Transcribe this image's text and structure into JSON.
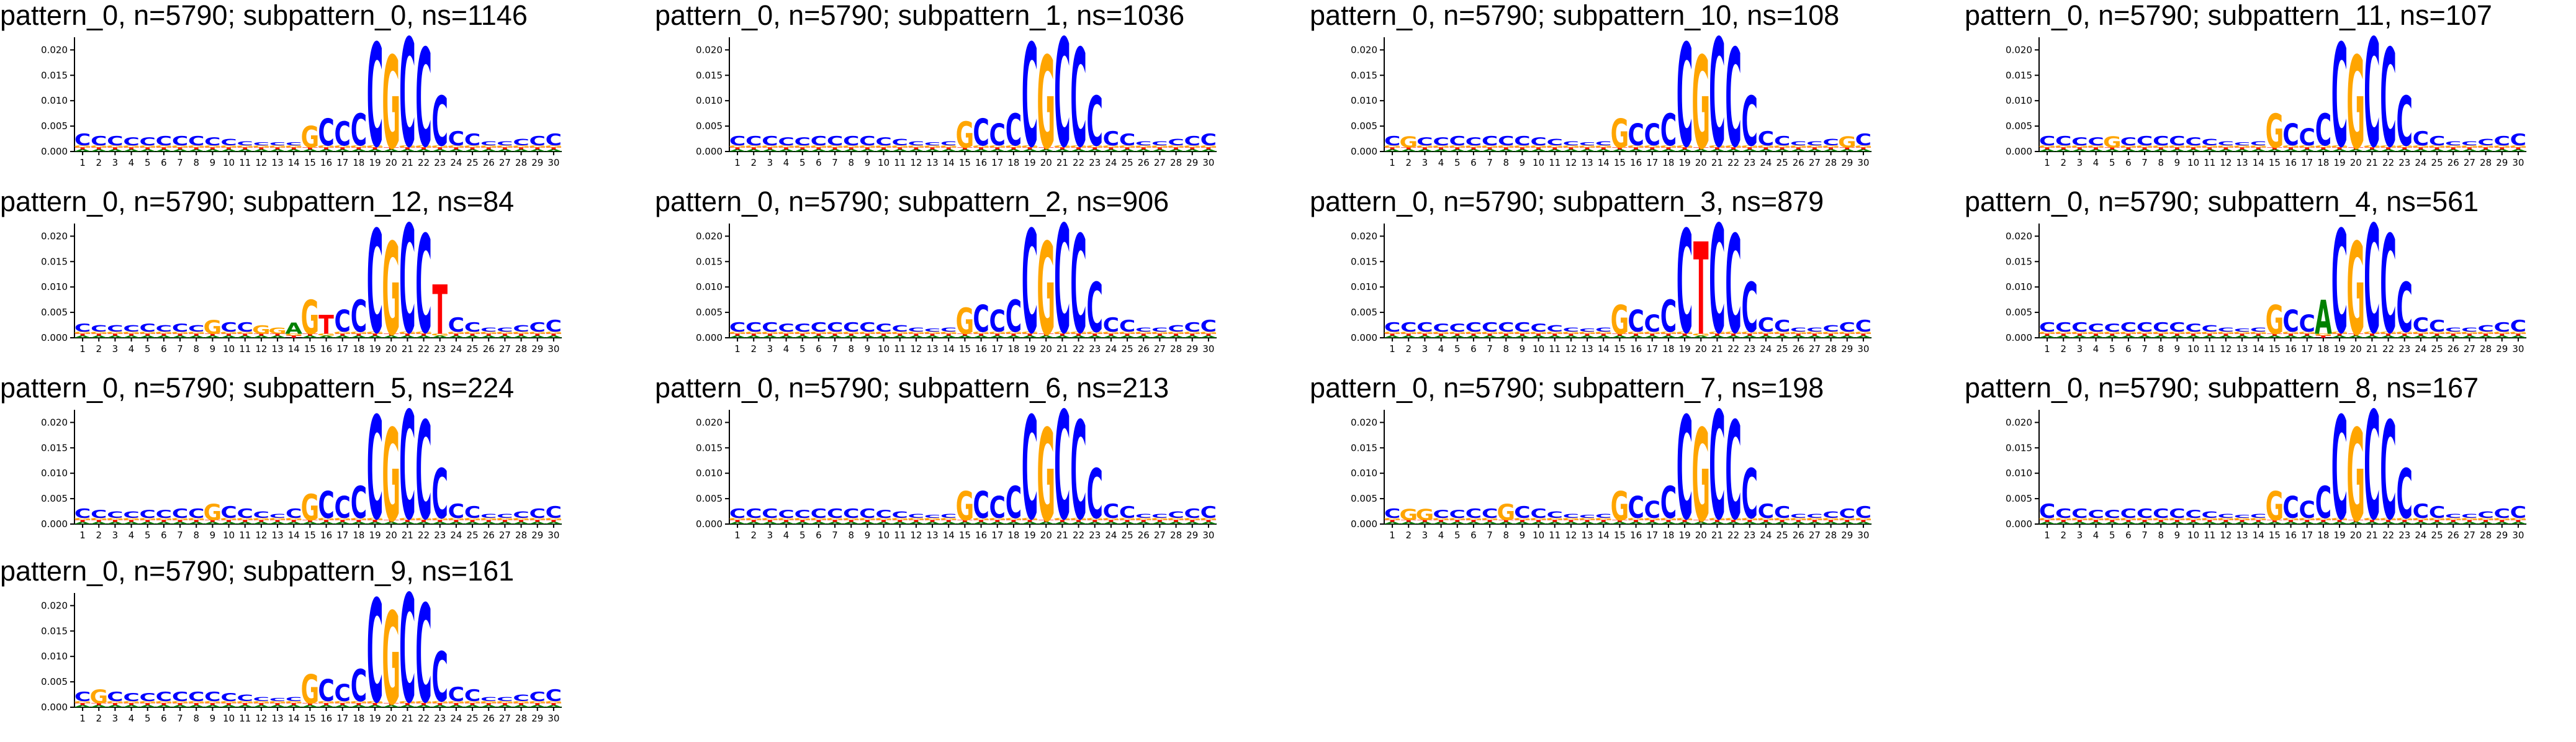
{
  "colors": {
    "A": "#008000",
    "C": "#0000ff",
    "G": "#ffa500",
    "T": "#ff0000",
    "axis": "#000000"
  },
  "chart_data": [
    {
      "type": "sequence-logo",
      "title": "pattern_0, n=5790; subpattern_0, ns=1146",
      "ylim": [
        0,
        0.022
      ],
      "yticks": [
        "0.000",
        "0.005",
        "0.010",
        "0.015",
        "0.020"
      ],
      "xticks": [
        1,
        2,
        3,
        4,
        5,
        6,
        7,
        8,
        9,
        10,
        11,
        12,
        13,
        14,
        15,
        16,
        17,
        18,
        19,
        20,
        21,
        22,
        23,
        24,
        25,
        26,
        27,
        28,
        29,
        30
      ],
      "sequence": "CCCCCCCCCCCCCCGCCCCGCCCCCCCCCC",
      "heights": [
        0.0035,
        0.003,
        0.003,
        0.0028,
        0.0028,
        0.003,
        0.003,
        0.003,
        0.0028,
        0.0025,
        0.002,
        0.0015,
        0.001,
        0.0015,
        0.005,
        0.0065,
        0.006,
        0.0075,
        0.0215,
        0.019,
        0.0225,
        0.0205,
        0.011,
        0.004,
        0.0035,
        0.002,
        0.002,
        0.0025,
        0.003,
        0.0035
      ]
    },
    {
      "type": "sequence-logo",
      "title": "pattern_0, n=5790; subpattern_1, ns=1036",
      "ylim": [
        0,
        0.022
      ],
      "yticks": [
        "0.000",
        "0.005",
        "0.010",
        "0.015",
        "0.020"
      ],
      "xticks": [
        1,
        2,
        3,
        4,
        5,
        6,
        7,
        8,
        9,
        10,
        11,
        12,
        13,
        14,
        15,
        16,
        17,
        18,
        19,
        20,
        21,
        22,
        23,
        24,
        25,
        26,
        27,
        28,
        29,
        30
      ],
      "sequence": "CCCCCCCCCCCCCCGCCCCGCCCCCCCCCC",
      "heights": [
        0.003,
        0.003,
        0.003,
        0.0028,
        0.0028,
        0.003,
        0.003,
        0.003,
        0.003,
        0.0028,
        0.0025,
        0.002,
        0.0015,
        0.002,
        0.006,
        0.0065,
        0.0055,
        0.0075,
        0.0215,
        0.019,
        0.0225,
        0.0205,
        0.011,
        0.004,
        0.0035,
        0.002,
        0.002,
        0.0025,
        0.003,
        0.0035
      ]
    },
    {
      "type": "sequence-logo",
      "title": "pattern_0, n=5790; subpattern_10, ns=108",
      "ylim": [
        0,
        0.022
      ],
      "yticks": [
        "0.000",
        "0.005",
        "0.010",
        "0.015",
        "0.020"
      ],
      "xticks": [
        1,
        2,
        3,
        4,
        5,
        6,
        7,
        8,
        9,
        10,
        11,
        12,
        13,
        14,
        15,
        16,
        17,
        18,
        19,
        20,
        21,
        22,
        23,
        24,
        25,
        26,
        27,
        28,
        29,
        30
      ],
      "sequence": "CGCCCCCCCCCCCCGCCCCGCCCCCCCCGC",
      "heights": [
        0.003,
        0.003,
        0.0028,
        0.0028,
        0.003,
        0.0028,
        0.003,
        0.003,
        0.003,
        0.0028,
        0.0025,
        0.002,
        0.0015,
        0.002,
        0.0065,
        0.0055,
        0.0055,
        0.0075,
        0.0215,
        0.019,
        0.0225,
        0.0205,
        0.011,
        0.004,
        0.003,
        0.002,
        0.002,
        0.0025,
        0.003,
        0.0035
      ]
    },
    {
      "type": "sequence-logo",
      "title": "pattern_0, n=5790; subpattern_11, ns=107",
      "ylim": [
        0,
        0.022
      ],
      "yticks": [
        "0.000",
        "0.005",
        "0.010",
        "0.015",
        "0.020"
      ],
      "xticks": [
        1,
        2,
        3,
        4,
        5,
        6,
        7,
        8,
        9,
        10,
        11,
        12,
        13,
        14,
        15,
        16,
        17,
        18,
        19,
        20,
        21,
        22,
        23,
        24,
        25,
        26,
        27,
        28,
        29,
        30
      ],
      "sequence": "CCCCGCCCCCCCCCGCCCCGCCCCCCCCCC",
      "heights": [
        0.003,
        0.003,
        0.0028,
        0.0028,
        0.003,
        0.0028,
        0.003,
        0.003,
        0.003,
        0.0028,
        0.0025,
        0.002,
        0.0015,
        0.002,
        0.0075,
        0.0055,
        0.0045,
        0.0075,
        0.0215,
        0.019,
        0.0225,
        0.0205,
        0.011,
        0.004,
        0.003,
        0.002,
        0.002,
        0.0025,
        0.003,
        0.0035
      ]
    },
    {
      "type": "sequence-logo",
      "title": "pattern_0, n=5790; subpattern_12, ns=84",
      "ylim": [
        0,
        0.022
      ],
      "yticks": [
        "0.000",
        "0.005",
        "0.010",
        "0.015",
        "0.020"
      ],
      "xticks": [
        1,
        2,
        3,
        4,
        5,
        6,
        7,
        8,
        9,
        10,
        11,
        12,
        13,
        14,
        15,
        16,
        17,
        18,
        19,
        20,
        21,
        22,
        23,
        24,
        25,
        26,
        27,
        28,
        29,
        30
      ],
      "sequence": "CCCCCCCCGCCGGAGTCCCGCCTCCCCCCC",
      "heights": [
        0.0028,
        0.0025,
        0.0025,
        0.0025,
        0.0028,
        0.0025,
        0.0028,
        0.0025,
        0.0035,
        0.003,
        0.003,
        0.0025,
        0.002,
        0.003,
        0.0075,
        0.0045,
        0.0055,
        0.0075,
        0.0215,
        0.019,
        0.0225,
        0.0205,
        0.0105,
        0.004,
        0.003,
        0.002,
        0.002,
        0.0025,
        0.003,
        0.0035
      ]
    },
    {
      "type": "sequence-logo",
      "title": "pattern_0, n=5790; subpattern_2, ns=906",
      "ylim": [
        0,
        0.022
      ],
      "yticks": [
        "0.000",
        "0.005",
        "0.010",
        "0.015",
        "0.020"
      ],
      "xticks": [
        1,
        2,
        3,
        4,
        5,
        6,
        7,
        8,
        9,
        10,
        11,
        12,
        13,
        14,
        15,
        16,
        17,
        18,
        19,
        20,
        21,
        22,
        23,
        24,
        25,
        26,
        27,
        28,
        29,
        30
      ],
      "sequence": "CCCCCCCCCCCCCCGCCCCGCCCCCCCCCC",
      "heights": [
        0.003,
        0.003,
        0.003,
        0.0028,
        0.0028,
        0.003,
        0.003,
        0.003,
        0.003,
        0.0028,
        0.0025,
        0.002,
        0.0015,
        0.002,
        0.006,
        0.0065,
        0.0055,
        0.0075,
        0.0215,
        0.019,
        0.0225,
        0.0205,
        0.011,
        0.004,
        0.0035,
        0.002,
        0.002,
        0.0025,
        0.003,
        0.0035
      ]
    },
    {
      "type": "sequence-logo",
      "title": "pattern_0, n=5790; subpattern_3, ns=879",
      "ylim": [
        0,
        0.022
      ],
      "yticks": [
        "0.000",
        "0.005",
        "0.010",
        "0.015",
        "0.020"
      ],
      "xticks": [
        1,
        2,
        3,
        4,
        5,
        6,
        7,
        8,
        9,
        10,
        11,
        12,
        13,
        14,
        15,
        16,
        17,
        18,
        19,
        20,
        21,
        22,
        23,
        24,
        25,
        26,
        27,
        28,
        29,
        30
      ],
      "sequence": "CCCCCCCCCCCCCCGCCCCTCCCCCCCCCC",
      "heights": [
        0.003,
        0.003,
        0.003,
        0.0028,
        0.0028,
        0.003,
        0.003,
        0.003,
        0.003,
        0.0028,
        0.0025,
        0.002,
        0.0015,
        0.002,
        0.0065,
        0.0055,
        0.0045,
        0.0075,
        0.0215,
        0.019,
        0.0225,
        0.0205,
        0.011,
        0.004,
        0.0035,
        0.002,
        0.002,
        0.0025,
        0.003,
        0.0035
      ]
    },
    {
      "type": "sequence-logo",
      "title": "pattern_0, n=5790; subpattern_4, ns=561",
      "ylim": [
        0,
        0.022
      ],
      "yticks": [
        "0.000",
        "0.005",
        "0.010",
        "0.015",
        "0.020"
      ],
      "xticks": [
        1,
        2,
        3,
        4,
        5,
        6,
        7,
        8,
        9,
        10,
        11,
        12,
        13,
        14,
        15,
        16,
        17,
        18,
        19,
        20,
        21,
        22,
        23,
        24,
        25,
        26,
        27,
        28,
        29,
        30
      ],
      "sequence": "CCCCCCCCCCCCCCGCCACGCCCCCCCCCC",
      "heights": [
        0.003,
        0.003,
        0.003,
        0.0028,
        0.0028,
        0.003,
        0.003,
        0.003,
        0.003,
        0.0028,
        0.0025,
        0.002,
        0.0015,
        0.002,
        0.0065,
        0.0055,
        0.0045,
        0.0075,
        0.0215,
        0.019,
        0.0225,
        0.0205,
        0.011,
        0.004,
        0.0035,
        0.002,
        0.002,
        0.0025,
        0.003,
        0.0035
      ]
    },
    {
      "type": "sequence-logo",
      "title": "pattern_0, n=5790; subpattern_5, ns=224",
      "ylim": [
        0,
        0.022
      ],
      "yticks": [
        "0.000",
        "0.005",
        "0.010",
        "0.015",
        "0.020"
      ],
      "xticks": [
        1,
        2,
        3,
        4,
        5,
        6,
        7,
        8,
        9,
        10,
        11,
        12,
        13,
        14,
        15,
        16,
        17,
        18,
        19,
        20,
        21,
        22,
        23,
        24,
        25,
        26,
        27,
        28,
        29,
        30
      ],
      "sequence": "CCCCCCCCGCCCCCGCCCCGCCCCCCCCCC",
      "heights": [
        0.003,
        0.0028,
        0.0025,
        0.0025,
        0.0028,
        0.0028,
        0.003,
        0.003,
        0.004,
        0.0035,
        0.003,
        0.0025,
        0.002,
        0.003,
        0.006,
        0.0065,
        0.0055,
        0.0075,
        0.0215,
        0.019,
        0.0225,
        0.0205,
        0.011,
        0.004,
        0.0035,
        0.002,
        0.002,
        0.0025,
        0.003,
        0.0035
      ]
    },
    {
      "type": "sequence-logo",
      "title": "pattern_0, n=5790; subpattern_6, ns=213",
      "ylim": [
        0,
        0.022
      ],
      "yticks": [
        "0.000",
        "0.005",
        "0.010",
        "0.015",
        "0.020"
      ],
      "xticks": [
        1,
        2,
        3,
        4,
        5,
        6,
        7,
        8,
        9,
        10,
        11,
        12,
        13,
        14,
        15,
        16,
        17,
        18,
        19,
        20,
        21,
        22,
        23,
        24,
        25,
        26,
        27,
        28,
        29,
        30
      ],
      "sequence": "CCCCCCCCCCCCCCGCCCCGCCCCCCCCCC",
      "heights": [
        0.003,
        0.003,
        0.003,
        0.0028,
        0.0028,
        0.003,
        0.003,
        0.003,
        0.003,
        0.0028,
        0.0025,
        0.002,
        0.0015,
        0.002,
        0.0065,
        0.0065,
        0.0055,
        0.0075,
        0.0215,
        0.019,
        0.0225,
        0.0205,
        0.011,
        0.004,
        0.0035,
        0.002,
        0.002,
        0.0025,
        0.003,
        0.0035
      ]
    },
    {
      "type": "sequence-logo",
      "title": "pattern_0, n=5790; subpattern_7, ns=198",
      "ylim": [
        0,
        0.022
      ],
      "yticks": [
        "0.000",
        "0.005",
        "0.010",
        "0.015",
        "0.020"
      ],
      "xticks": [
        1,
        2,
        3,
        4,
        5,
        6,
        7,
        8,
        9,
        10,
        11,
        12,
        13,
        14,
        15,
        16,
        17,
        18,
        19,
        20,
        21,
        22,
        23,
        24,
        25,
        26,
        27,
        28,
        29,
        30
      ],
      "sequence": "CGGCCCCGCCCCCCGCCCCGCCCCCCCCCC",
      "heights": [
        0.003,
        0.003,
        0.003,
        0.0028,
        0.0028,
        0.003,
        0.003,
        0.004,
        0.0035,
        0.003,
        0.0025,
        0.002,
        0.0015,
        0.002,
        0.0065,
        0.0055,
        0.0045,
        0.0075,
        0.0215,
        0.019,
        0.0225,
        0.0205,
        0.011,
        0.004,
        0.0035,
        0.002,
        0.002,
        0.0025,
        0.003,
        0.0035
      ]
    },
    {
      "type": "sequence-logo",
      "title": "pattern_0, n=5790; subpattern_8, ns=167",
      "ylim": [
        0,
        0.022
      ],
      "yticks": [
        "0.000",
        "0.005",
        "0.010",
        "0.015",
        "0.020"
      ],
      "xticks": [
        1,
        2,
        3,
        4,
        5,
        6,
        7,
        8,
        9,
        10,
        11,
        12,
        13,
        14,
        15,
        16,
        17,
        18,
        19,
        20,
        21,
        22,
        23,
        24,
        25,
        26,
        27,
        28,
        29,
        30
      ],
      "sequence": "CCCCCCCCCCCCCCGCCCCGCCCCCCCCCC",
      "heights": [
        0.004,
        0.003,
        0.003,
        0.0028,
        0.0028,
        0.003,
        0.003,
        0.003,
        0.003,
        0.0028,
        0.0025,
        0.002,
        0.0015,
        0.002,
        0.0065,
        0.0055,
        0.0045,
        0.0075,
        0.0215,
        0.019,
        0.0225,
        0.0205,
        0.011,
        0.004,
        0.0035,
        0.002,
        0.002,
        0.0025,
        0.003,
        0.0035
      ]
    },
    {
      "type": "sequence-logo",
      "title": "pattern_0, n=5790; subpattern_9, ns=161",
      "ylim": [
        0,
        0.022
      ],
      "yticks": [
        "0.000",
        "0.005",
        "0.010",
        "0.015",
        "0.020"
      ],
      "xticks": [
        1,
        2,
        3,
        4,
        5,
        6,
        7,
        8,
        9,
        10,
        11,
        12,
        13,
        14,
        15,
        16,
        17,
        18,
        19,
        20,
        21,
        22,
        23,
        24,
        25,
        26,
        27,
        28,
        29,
        30
      ],
      "sequence": "CGCCCCCCCCCCCCGCCCCGCCCCCCCCCC",
      "heights": [
        0.003,
        0.0035,
        0.003,
        0.0028,
        0.0028,
        0.003,
        0.003,
        0.003,
        0.003,
        0.0028,
        0.0025,
        0.002,
        0.0015,
        0.002,
        0.0065,
        0.0055,
        0.0045,
        0.0075,
        0.0215,
        0.019,
        0.0225,
        0.0205,
        0.011,
        0.004,
        0.0035,
        0.002,
        0.002,
        0.0025,
        0.003,
        0.0035
      ]
    }
  ]
}
